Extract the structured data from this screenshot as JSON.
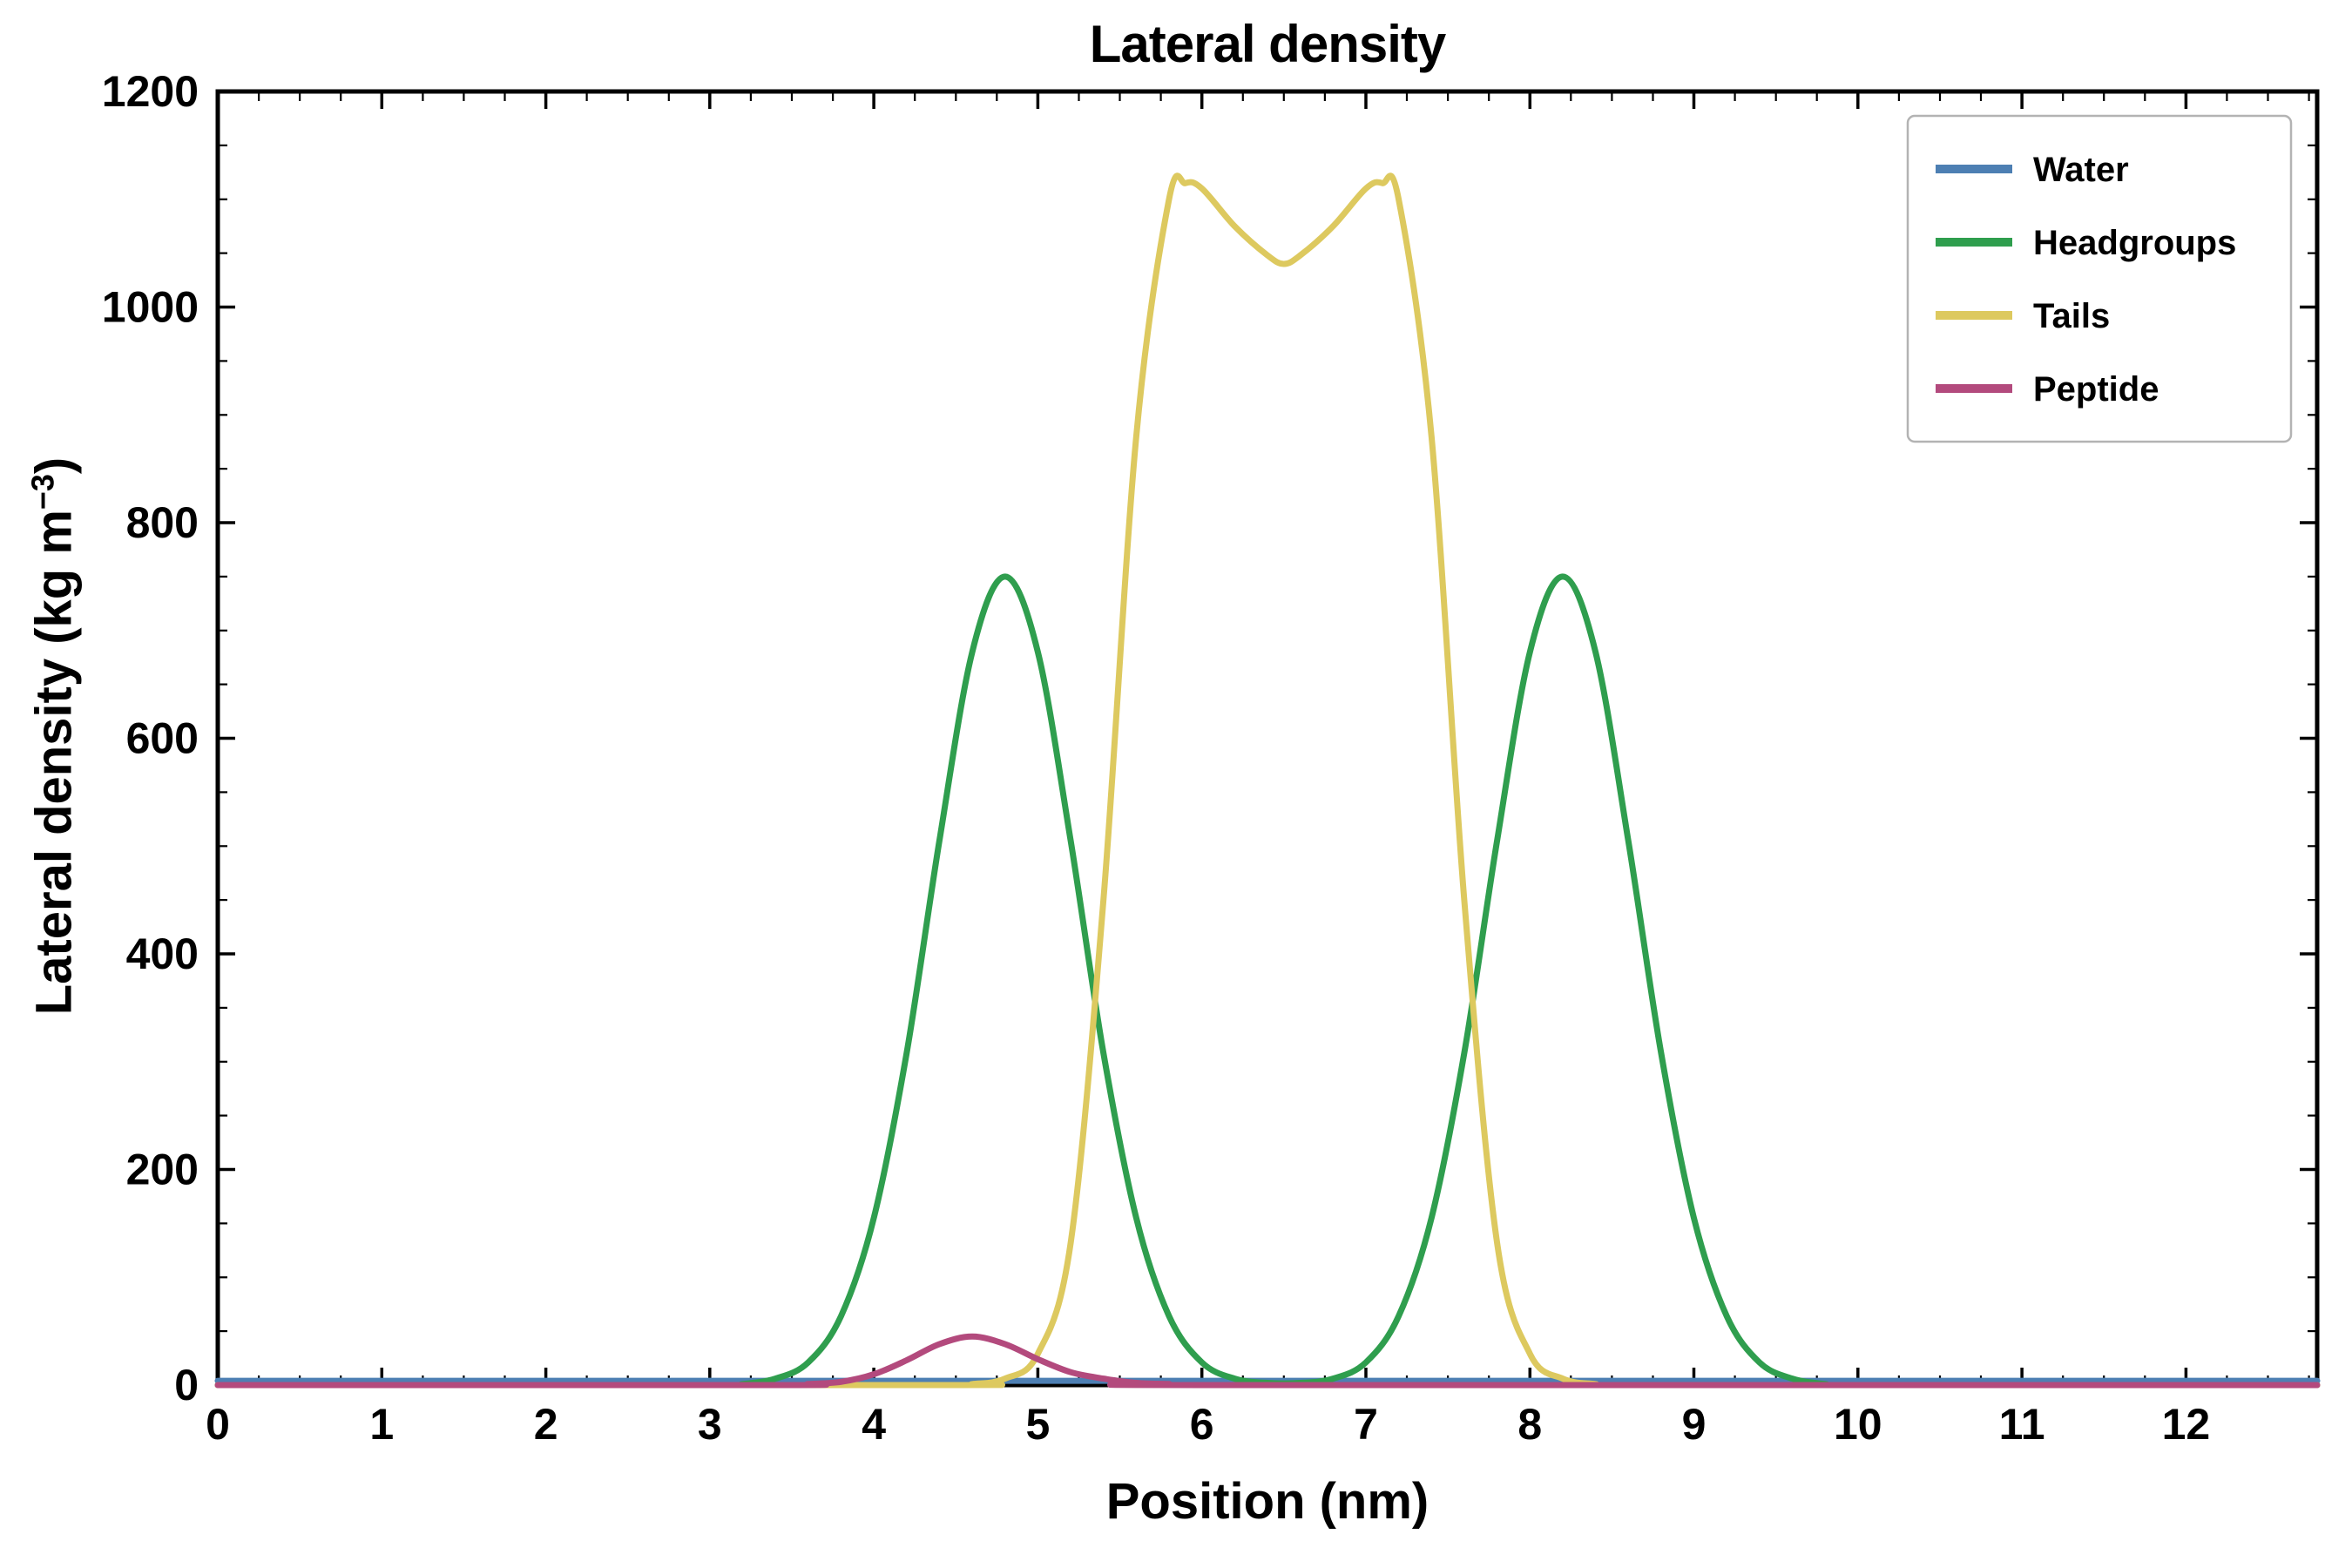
{
  "title": "Lateral density",
  "axes": {
    "xlabel": "Position (nm)",
    "ylabel_main": "Lateral density (kg m",
    "ylabel_sup": "−3",
    "ylabel_close": ")",
    "x_tick_labels": [
      "0",
      "1",
      "2",
      "3",
      "4",
      "5",
      "6",
      "7",
      "8",
      "9",
      "10",
      "11",
      "12"
    ],
    "y_tick_labels": [
      "0",
      "200",
      "400",
      "600",
      "800",
      "1000",
      "1200"
    ]
  },
  "legend": {
    "position": "upper right",
    "entries": [
      "Water",
      "Headgroups",
      "Tails",
      "Peptide"
    ]
  },
  "styles": {
    "background": "#ffffff",
    "axis_color": "#000000",
    "text_color": "#000000",
    "legend_border": "#b3b3b3",
    "legend_background": "#ffffff",
    "line_width": 7
  },
  "chart_data": {
    "type": "line",
    "title": "Lateral density",
    "xlabel": "Position (nm)",
    "ylabel": "Lateral density (kg m⁻³)",
    "xlim": [
      0,
      12.8
    ],
    "ylim": [
      0,
      1200
    ],
    "x_major_tick": 1,
    "x_minor_tick": 0.25,
    "y_major_tick": 200,
    "y_minor_tick": 50,
    "grid": false,
    "legend_position": "upper right",
    "series": [
      {
        "name": "Water",
        "color": "#4d7fb3",
        "points": [
          [
            0,
            4
          ],
          [
            12.8,
            4
          ]
        ]
      },
      {
        "name": "Headgroups",
        "color": "#2f9e4e",
        "points": [
          [
            0,
            0
          ],
          [
            3.0,
            0
          ],
          [
            3.2,
            1
          ],
          [
            3.4,
            6
          ],
          [
            3.6,
            21
          ],
          [
            3.8,
            64
          ],
          [
            4.0,
            155
          ],
          [
            4.2,
            308
          ],
          [
            4.4,
            505
          ],
          [
            4.6,
            680
          ],
          [
            4.8,
            750
          ],
          [
            5.0,
            680
          ],
          [
            5.2,
            505
          ],
          [
            5.4,
            308
          ],
          [
            5.6,
            155
          ],
          [
            5.8,
            64
          ],
          [
            6.0,
            21
          ],
          [
            6.2,
            6
          ],
          [
            6.4,
            2
          ],
          [
            6.6,
            2
          ],
          [
            6.8,
            6
          ],
          [
            7.0,
            21
          ],
          [
            7.2,
            64
          ],
          [
            7.4,
            155
          ],
          [
            7.6,
            308
          ],
          [
            7.8,
            505
          ],
          [
            8.0,
            680
          ],
          [
            8.2,
            750
          ],
          [
            8.4,
            680
          ],
          [
            8.6,
            505
          ],
          [
            8.8,
            308
          ],
          [
            9.0,
            155
          ],
          [
            9.2,
            64
          ],
          [
            9.4,
            21
          ],
          [
            9.6,
            6
          ],
          [
            9.8,
            1
          ],
          [
            10.0,
            0
          ],
          [
            12.8,
            0
          ]
        ]
      },
      {
        "name": "Tails",
        "color": "#ddc95f",
        "points": [
          [
            0,
            0
          ],
          [
            4.4,
            0
          ],
          [
            4.6,
            1
          ],
          [
            4.8,
            6
          ],
          [
            5.0,
            29
          ],
          [
            5.2,
            132
          ],
          [
            5.4,
            450
          ],
          [
            5.6,
            880
          ],
          [
            5.8,
            1100
          ],
          [
            5.9,
            1115
          ],
          [
            6.0,
            1110
          ],
          [
            6.2,
            1075
          ],
          [
            6.4,
            1048
          ],
          [
            6.5,
            1040
          ],
          [
            6.6,
            1048
          ],
          [
            6.8,
            1075
          ],
          [
            7.0,
            1110
          ],
          [
            7.1,
            1115
          ],
          [
            7.2,
            1100
          ],
          [
            7.4,
            880
          ],
          [
            7.6,
            450
          ],
          [
            7.8,
            132
          ],
          [
            8.0,
            29
          ],
          [
            8.2,
            6
          ],
          [
            8.4,
            1
          ],
          [
            8.6,
            0
          ],
          [
            12.8,
            0
          ]
        ]
      },
      {
        "name": "Peptide",
        "color": "#b34a7d",
        "points": [
          [
            0,
            0
          ],
          [
            3.4,
            0
          ],
          [
            3.6,
            1
          ],
          [
            3.8,
            3
          ],
          [
            4.0,
            10
          ],
          [
            4.2,
            23
          ],
          [
            4.4,
            38
          ],
          [
            4.6,
            45
          ],
          [
            4.8,
            38
          ],
          [
            5.0,
            24
          ],
          [
            5.2,
            12
          ],
          [
            5.4,
            6
          ],
          [
            5.6,
            2
          ],
          [
            5.8,
            1
          ],
          [
            6.0,
            0
          ],
          [
            12.8,
            0
          ]
        ]
      }
    ]
  }
}
